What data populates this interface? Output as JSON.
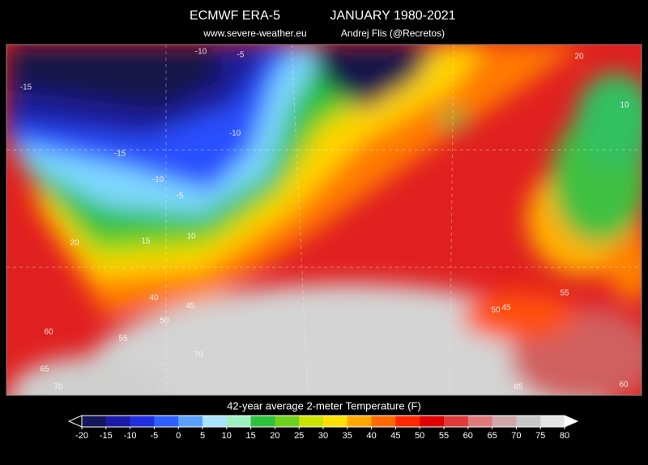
{
  "header": {
    "title": "ECMWF ERA-5",
    "period": "JANUARY 1980-2021",
    "website": "www.severe-weather.eu",
    "author": "Andrej Flis (@Recretos)"
  },
  "map": {
    "contour_labels": [
      "-15",
      "-15",
      "-10",
      "-10",
      "-5",
      "-5",
      "-10",
      "10",
      "15",
      "20",
      "40",
      "45",
      "50",
      "55",
      "60",
      "65",
      "70",
      "70",
      "10",
      "20",
      "45",
      "50",
      "55",
      "60",
      "65"
    ]
  },
  "colorbar": {
    "title": "42-year average   2-meter Temperature (F)",
    "ticks": [
      -20,
      -15,
      -10,
      -5,
      0,
      5,
      10,
      15,
      20,
      25,
      30,
      35,
      40,
      45,
      50,
      55,
      60,
      65,
      70,
      75,
      80
    ]
  }
}
